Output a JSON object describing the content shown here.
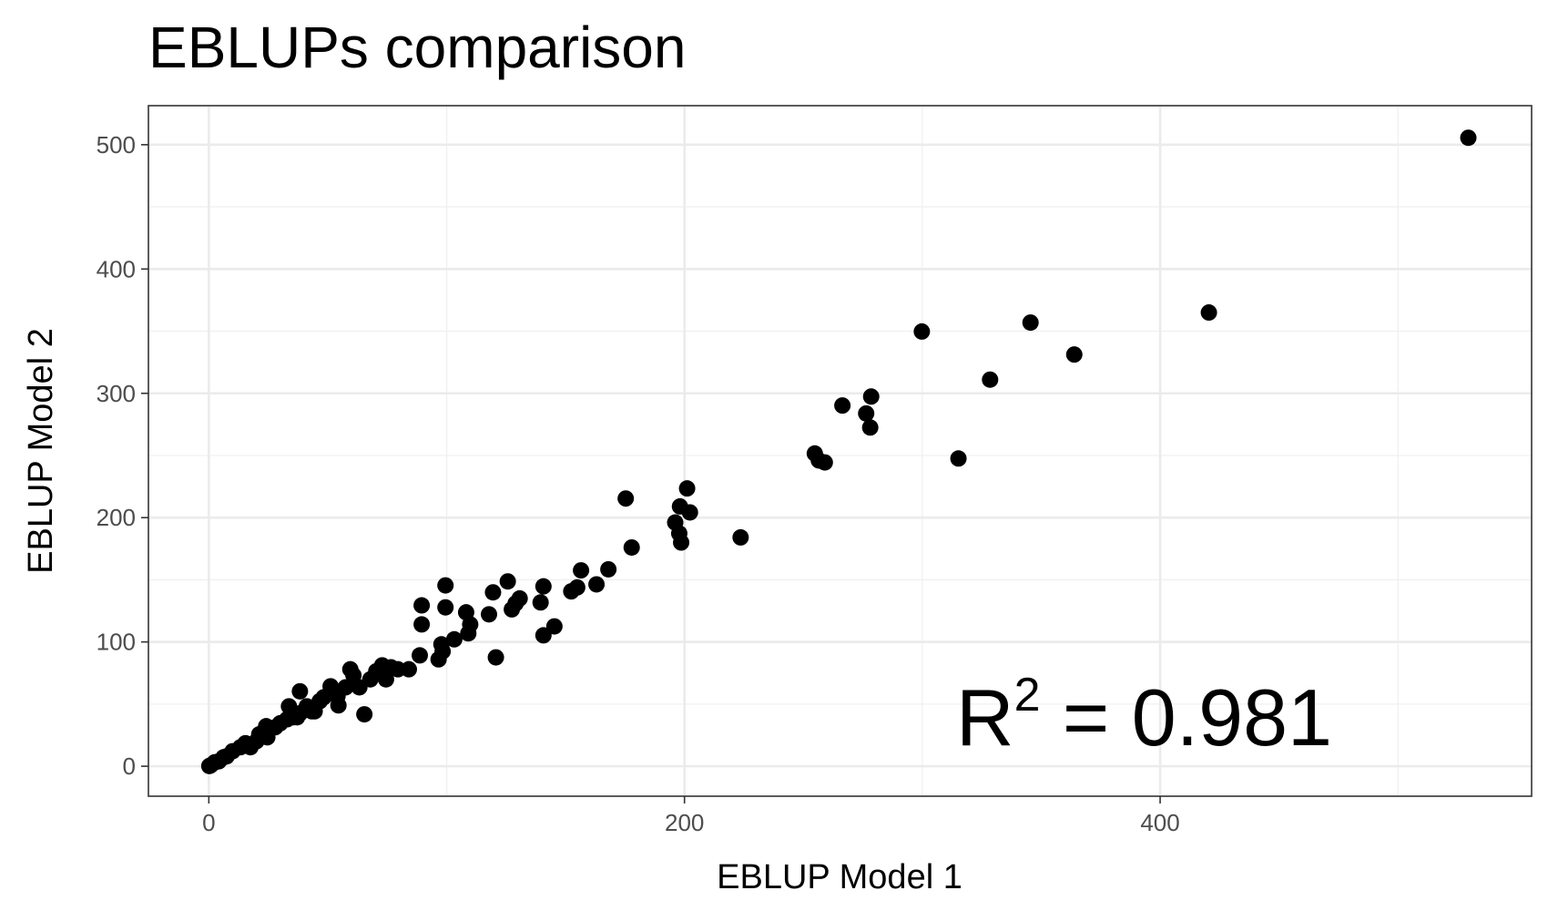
{
  "chart_data": {
    "type": "scatter",
    "title": "EBLUPs comparison",
    "x_label": "EBLUP Model 1",
    "y_label": "EBLUP Model 2",
    "annotation": {
      "base": "R",
      "superscript": "2",
      "rest": " = 0.981"
    },
    "color": "#000000",
    "xlim": [
      -25.4,
      556.2
    ],
    "ylim": [
      -24.1,
      531.4
    ],
    "xticks": [
      0,
      200,
      400
    ],
    "yticks": [
      0,
      100,
      200,
      300,
      400,
      500
    ],
    "x_minor_ticks": [
      100,
      300,
      500
    ],
    "y_minor_ticks": [
      50,
      150,
      250,
      350,
      450
    ],
    "grid": true,
    "x": [
      529.6,
      420.5,
      299.8,
      345.5,
      363.9,
      328.5,
      315.2,
      266.4,
      278.5,
      276.4,
      278.1,
      254.8,
      256.5,
      259,
      223.6,
      175.3,
      201.1,
      198.1,
      202.3,
      196.1,
      197.8,
      198.6,
      177.8,
      168,
      163,
      156.5,
      154.9,
      152.4,
      140.7,
      139.5,
      145.3,
      140.7,
      125.7,
      130.7,
      129,
      127.4,
      119.5,
      117.8,
      120.7,
      108.2,
      109.9,
      109.1,
      103.2,
      99.5,
      99.5,
      89.5,
      89.5,
      97.8,
      98.3,
      96.6,
      88.7,
      84.1,
      79.5,
      76.6,
      72.9,
      70.4,
      74.5,
      67.9,
      63.3,
      65.4,
      59.5,
      60.8,
      57.5,
      52,
      54.1,
      51.2,
      54.5,
      46.6,
      41.2,
      44.5,
      38.3,
      33.7,
      35.4,
      38.3,
      30,
      24.1,
      24.6,
      20,
      15.4,
      13.3,
      10,
      7.5,
      4.2,
      0.8,
      0.2,
      21.2,
      27.9,
      32.9,
      37.1,
      43.3,
      48.3,
      17.5,
      6.2,
      2.5
    ],
    "y": [
      505.6,
      365,
      349.7,
      356.9,
      331.2,
      311,
      247.6,
      290.2,
      297.4,
      283.8,
      272.5,
      251.6,
      246,
      244.4,
      184.1,
      215.4,
      223.5,
      209,
      204.2,
      196.1,
      187.3,
      180,
      176,
      158.4,
      146.3,
      157.6,
      143.9,
      140.7,
      144.7,
      131.8,
      112.5,
      105.3,
      148.7,
      135,
      131,
      126.2,
      139.9,
      122.2,
      87.6,
      123.8,
      114.1,
      106.9,
      102.1,
      145.5,
      127.8,
      129.4,
      114.1,
      98.1,
      92.4,
      86,
      89.2,
      78,
      78,
      79.6,
      81.2,
      76.4,
      69.9,
      69.9,
      63.5,
      41.8,
      78,
      73.2,
      63.5,
      61.1,
      56.3,
      64.3,
      49,
      52.3,
      48.2,
      44.2,
      60.3,
      48.2,
      39.4,
      42.6,
      34.6,
      32.2,
      23.3,
      20.1,
      18.5,
      15.3,
      12.1,
      8,
      4,
      0.8,
      0.2,
      25.7,
      31.4,
      37.8,
      39.4,
      44.2,
      55.5,
      15.3,
      7.2,
      3.2
    ]
  }
}
